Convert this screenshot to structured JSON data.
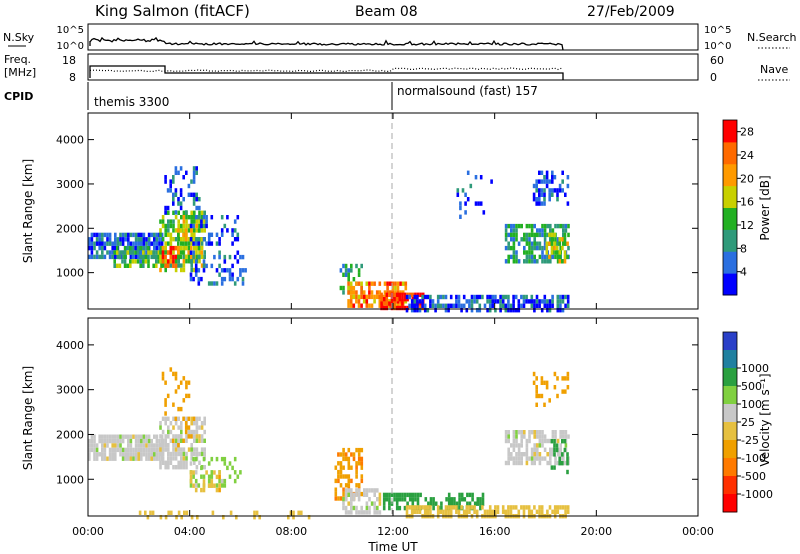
{
  "header": {
    "station": "King Salmon (fitACF)",
    "beam": "Beam 08",
    "date": "27/Feb/2009"
  },
  "labels": {
    "nsky": "N.Sky",
    "nsearch": "N.Search",
    "freq_line1": "Freq.",
    "freq_line2": "[MHz]",
    "nave": "Nave",
    "cpid": "CPID",
    "nsky_ticks": [
      "10^5",
      "10^0"
    ],
    "freq_ticks": [
      "18",
      "8"
    ],
    "nave_ticks": [
      "60",
      "0"
    ]
  },
  "cpid_segments": [
    {
      "label": "themis 3300",
      "start_hour": 0.0
    },
    {
      "label": "normalsound (fast) 157",
      "start_hour": 12.0
    }
  ],
  "colors": {
    "power_scale": [
      "#0000ff",
      "#2a6fe0",
      "#2f9a7a",
      "#22b022",
      "#c8d000",
      "#ff9a00",
      "#ff6a00",
      "#ff0000"
    ],
    "velocity_scale": [
      "#2a40c8",
      "#2080a0",
      "#2aa040",
      "#80d040",
      "#c8c8c8",
      "#e6c040",
      "#f0a000",
      "#ff7a00",
      "#ff3000",
      "#ff0000"
    ]
  },
  "chart_data": [
    {
      "type": "heatmap",
      "title": "Power",
      "xlabel": "Time UT",
      "ylabel": "Slant Range [km]",
      "x_range_hours": [
        0,
        24
      ],
      "ylim": [
        180,
        4600
      ],
      "x_ticks": [
        "00:00",
        "04:00",
        "08:00",
        "12:00",
        "16:00",
        "20:00",
        "00:00"
      ],
      "y_ticks": [
        1000,
        2000,
        3000,
        4000
      ],
      "colorbar_label": "Power [dB]",
      "colorbar_ticks": [
        4,
        8,
        12,
        16,
        20,
        24,
        28
      ],
      "colorbar_range": [
        0,
        30
      ],
      "regions": [
        {
          "t0": 0.0,
          "t1": 2.9,
          "r0": 1400,
          "r1": 1900,
          "value": 6,
          "density": 0.85
        },
        {
          "t0": 1.0,
          "t1": 2.9,
          "r0": 1200,
          "r1": 1600,
          "value": 12,
          "density": 0.55
        },
        {
          "t0": 2.8,
          "t1": 4.6,
          "r0": 1100,
          "r1": 2400,
          "value": 14,
          "density": 0.7
        },
        {
          "t0": 2.9,
          "t1": 3.6,
          "r0": 1150,
          "r1": 1600,
          "value": 26,
          "density": 0.6
        },
        {
          "t0": 3.5,
          "t1": 4.5,
          "r0": 1400,
          "r1": 2000,
          "value": 18,
          "density": 0.55
        },
        {
          "t0": 3.0,
          "t1": 4.4,
          "r0": 2400,
          "r1": 3400,
          "value": 6,
          "density": 0.35
        },
        {
          "t0": 4.0,
          "t1": 6.2,
          "r0": 800,
          "r1": 1500,
          "value": 5,
          "density": 0.35
        },
        {
          "t0": 4.0,
          "t1": 6.0,
          "r0": 1700,
          "r1": 2300,
          "value": 5,
          "density": 0.3
        },
        {
          "t0": 9.9,
          "t1": 10.8,
          "r0": 600,
          "r1": 1200,
          "value": 10,
          "density": 0.5
        },
        {
          "t0": 10.2,
          "t1": 12.5,
          "r0": 300,
          "r1": 800,
          "value": 22,
          "density": 0.65
        },
        {
          "t0": 11.5,
          "t1": 13.2,
          "r0": 250,
          "r1": 550,
          "value": 28,
          "density": 0.7
        },
        {
          "t0": 12.5,
          "t1": 18.9,
          "r0": 200,
          "r1": 500,
          "value": 5,
          "density": 0.7
        },
        {
          "t0": 16.4,
          "t1": 18.9,
          "r0": 1300,
          "r1": 2100,
          "value": 10,
          "density": 0.65
        },
        {
          "t0": 18.0,
          "t1": 18.9,
          "r0": 1300,
          "r1": 1900,
          "value": 16,
          "density": 0.4
        },
        {
          "t0": 17.5,
          "t1": 18.9,
          "r0": 2600,
          "r1": 3300,
          "value": 5,
          "density": 0.35
        },
        {
          "t0": 14.5,
          "t1": 16.0,
          "r0": 2000,
          "r1": 3300,
          "value": 5,
          "density": 0.08
        }
      ]
    },
    {
      "type": "heatmap",
      "title": "Velocity",
      "xlabel": "Time UT",
      "ylabel": "Slant Range [km]",
      "x_range_hours": [
        0,
        24
      ],
      "ylim": [
        180,
        4600
      ],
      "x_ticks": [
        "00:00",
        "04:00",
        "08:00",
        "12:00",
        "16:00",
        "20:00",
        "00:00"
      ],
      "y_ticks": [
        1000,
        2000,
        3000,
        4000
      ],
      "colorbar_label": "Velocity [m s⁻¹]",
      "colorbar_ticks": [
        "-1000",
        "-500",
        "-100",
        "-25",
        "25",
        "100",
        "500",
        "1000"
      ],
      "colorbar_range": [
        -1000,
        1000
      ],
      "regions": [
        {
          "t0": 0.0,
          "t1": 2.9,
          "r0": 1500,
          "r1": 2000,
          "value": 0,
          "density": 0.85
        },
        {
          "t0": 2.8,
          "t1": 4.6,
          "r0": 1300,
          "r1": 2400,
          "value": 0,
          "density": 0.7
        },
        {
          "t0": 2.9,
          "t1": 4.0,
          "r0": 2500,
          "r1": 3500,
          "value": -200,
          "density": 0.25
        },
        {
          "t0": 3.2,
          "t1": 4.2,
          "r0": 1800,
          "r1": 2400,
          "value": -300,
          "density": 0.2
        },
        {
          "t0": 4.0,
          "t1": 6.0,
          "r0": 900,
          "r1": 1500,
          "value": 50,
          "density": 0.35
        },
        {
          "t0": 4.0,
          "t1": 5.2,
          "r0": 800,
          "r1": 1200,
          "value": -80,
          "density": 0.35
        },
        {
          "t0": 9.7,
          "t1": 10.8,
          "r0": 600,
          "r1": 1700,
          "value": -400,
          "density": 0.55
        },
        {
          "t0": 10.0,
          "t1": 11.5,
          "r0": 300,
          "r1": 800,
          "value": 0,
          "density": 0.6
        },
        {
          "t0": 11.5,
          "t1": 15.5,
          "r0": 350,
          "r1": 700,
          "value": 200,
          "density": 0.55
        },
        {
          "t0": 12.5,
          "t1": 18.9,
          "r0": 200,
          "r1": 420,
          "value": -60,
          "density": 0.7
        },
        {
          "t0": 16.4,
          "t1": 18.9,
          "r0": 1400,
          "r1": 2100,
          "value": 0,
          "density": 0.65
        },
        {
          "t0": 18.2,
          "t1": 18.9,
          "r0": 1200,
          "r1": 1900,
          "value": 300,
          "density": 0.35
        },
        {
          "t0": 17.5,
          "t1": 18.9,
          "r0": 2600,
          "r1": 3400,
          "value": -200,
          "density": 0.25
        },
        {
          "t0": 2.0,
          "t1": 9.5,
          "r0": 200,
          "r1": 300,
          "value": -60,
          "density": 0.2
        }
      ]
    }
  ]
}
